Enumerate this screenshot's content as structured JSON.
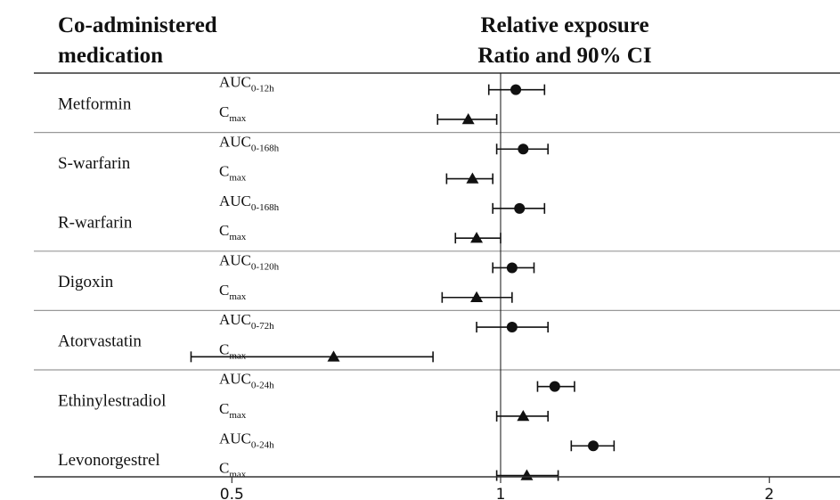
{
  "header": {
    "left_title_line1": "Co-administered",
    "left_title_line2": "medication",
    "right_title_line1": "Relative exposure",
    "right_title_line2": "Ratio and 90% CI"
  },
  "chart_data": {
    "type": "forest",
    "title": "",
    "xlabel": "",
    "ylabel": "",
    "x_scale": "log",
    "xlim": [
      0.3,
      2.4
    ],
    "reference_line": 1,
    "x_ticks": [
      {
        "value": 0.5,
        "label": "0.5"
      },
      {
        "value": 1,
        "label": "1"
      },
      {
        "value": 2,
        "label": "2"
      }
    ],
    "legend": "none",
    "grid": false,
    "groups": [
      {
        "medications": [
          {
            "name": "Metformin",
            "rows": [
              {
                "metric_base": "AUC",
                "metric_sub": "0-12h",
                "marker": "circle",
                "ratio": 1.04,
                "ci_low": 0.97,
                "ci_high": 1.12
              },
              {
                "metric_base": "C",
                "metric_sub": "max",
                "marker": "triangle",
                "ratio": 0.92,
                "ci_low": 0.85,
                "ci_high": 0.99
              }
            ]
          }
        ]
      },
      {
        "medications": [
          {
            "name": "S-warfarin",
            "rows": [
              {
                "metric_base": "AUC",
                "metric_sub": "0-168h",
                "marker": "circle",
                "ratio": 1.06,
                "ci_low": 0.99,
                "ci_high": 1.13
              },
              {
                "metric_base": "C",
                "metric_sub": "max",
                "marker": "triangle",
                "ratio": 0.93,
                "ci_low": 0.87,
                "ci_high": 0.98
              }
            ]
          },
          {
            "name": "R-warfarin",
            "rows": [
              {
                "metric_base": "AUC",
                "metric_sub": "0-168h",
                "marker": "circle",
                "ratio": 1.05,
                "ci_low": 0.98,
                "ci_high": 1.12
              },
              {
                "metric_base": "C",
                "metric_sub": "max",
                "marker": "triangle",
                "ratio": 0.94,
                "ci_low": 0.89,
                "ci_high": 1.0
              }
            ]
          }
        ]
      },
      {
        "medications": [
          {
            "name": "Digoxin",
            "rows": [
              {
                "metric_base": "AUC",
                "metric_sub": "0-120h",
                "marker": "circle",
                "ratio": 1.03,
                "ci_low": 0.98,
                "ci_high": 1.09
              },
              {
                "metric_base": "C",
                "metric_sub": "max",
                "marker": "triangle",
                "ratio": 0.94,
                "ci_low": 0.86,
                "ci_high": 1.03
              }
            ]
          }
        ]
      },
      {
        "medications": [
          {
            "name": "Atorvastatin",
            "rows": [
              {
                "metric_base": "AUC",
                "metric_sub": "0-72h",
                "marker": "circle",
                "ratio": 1.03,
                "ci_low": 0.94,
                "ci_high": 1.13
              },
              {
                "metric_base": "C",
                "metric_sub": "max",
                "marker": "triangle",
                "ratio": 0.65,
                "ci_low": 0.45,
                "ci_high": 0.84
              }
            ]
          }
        ]
      },
      {
        "medications": [
          {
            "name": "Ethinylestradiol",
            "rows": [
              {
                "metric_base": "AUC",
                "metric_sub": "0-24h",
                "marker": "circle",
                "ratio": 1.15,
                "ci_low": 1.1,
                "ci_high": 1.21
              },
              {
                "metric_base": "C",
                "metric_sub": "max",
                "marker": "triangle",
                "ratio": 1.06,
                "ci_low": 0.99,
                "ci_high": 1.13
              }
            ]
          },
          {
            "name": "Levonorgestrel",
            "rows": [
              {
                "metric_base": "AUC",
                "metric_sub": "0-24h",
                "marker": "circle",
                "ratio": 1.27,
                "ci_low": 1.2,
                "ci_high": 1.34
              },
              {
                "metric_base": "C",
                "metric_sub": "max",
                "marker": "triangle",
                "ratio": 1.07,
                "ci_low": 0.99,
                "ci_high": 1.16
              }
            ]
          }
        ]
      }
    ]
  },
  "colors": {
    "ink": "#111111",
    "divider": "#999999",
    "axis": "#333333"
  }
}
